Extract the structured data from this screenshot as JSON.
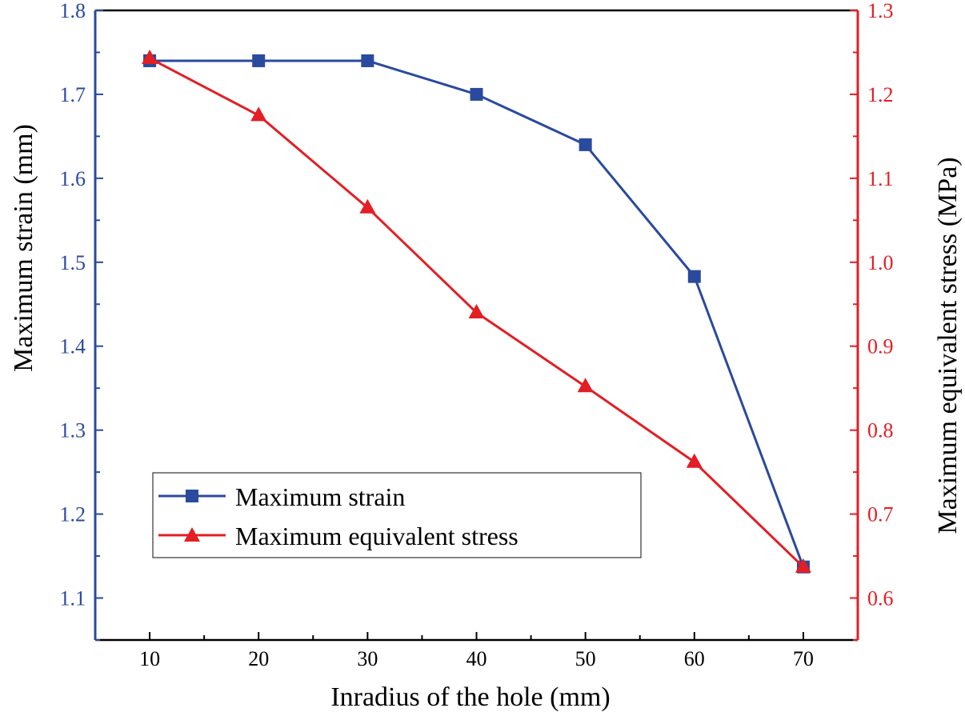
{
  "chart_data": {
    "type": "line",
    "x": [
      10,
      20,
      30,
      40,
      50,
      60,
      70
    ],
    "xlabel": "Inradius of the hole (mm)",
    "xlim": [
      5,
      75
    ],
    "xticks": [
      "10",
      "20",
      "30",
      "40",
      "50",
      "60",
      "70"
    ],
    "series": [
      {
        "name": "Maximum strain",
        "axis": "left",
        "marker": "square",
        "color": "#2a4a9e",
        "values": [
          1.74,
          1.74,
          1.74,
          1.7,
          1.64,
          1.483,
          1.137
        ]
      },
      {
        "name": "Maximum equivalent stress",
        "axis": "right",
        "marker": "triangle",
        "color": "#e31e24",
        "values": [
          1.243,
          1.175,
          1.065,
          0.94,
          0.852,
          0.762,
          0.637
        ]
      }
    ],
    "left_axis": {
      "label": "Maximum strain (mm)",
      "ylim": [
        1.05,
        1.8
      ],
      "ticks": [
        "1.1",
        "1.2",
        "1.3",
        "1.4",
        "1.5",
        "1.6",
        "1.7",
        "1.8"
      ],
      "color": "#2a4a9e"
    },
    "right_axis": {
      "label": "Maximum equivalent stress (MPa)",
      "ylim": [
        0.55,
        1.3
      ],
      "ticks": [
        "0.6",
        "0.7",
        "0.8",
        "0.9",
        "1.0",
        "1.1",
        "1.2",
        "1.3"
      ],
      "color": "#e31e24"
    },
    "legend": {
      "placement": "lower-left",
      "entries": [
        "Maximum strain",
        "Maximum equivalent stress"
      ]
    }
  }
}
